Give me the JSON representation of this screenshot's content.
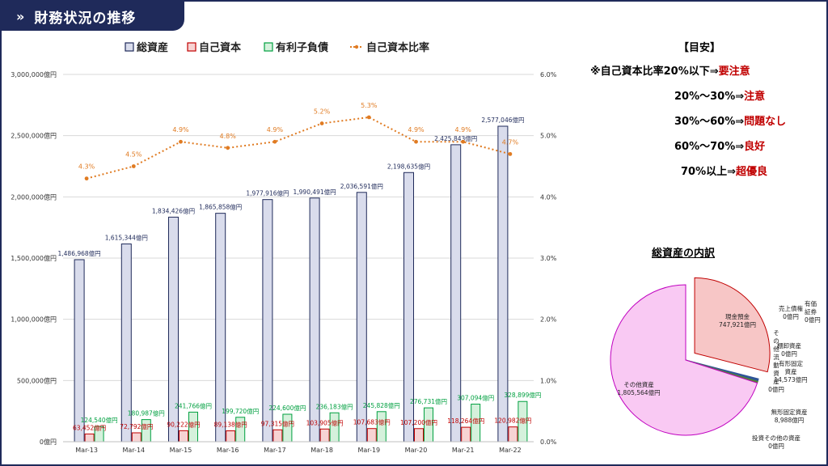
{
  "header": {
    "title": "財務状況の推移",
    "icon": "double-chevron-right-icon"
  },
  "chart_data": [
    {
      "type": "bar",
      "categories": [
        "Mar-13",
        "Mar-14",
        "Mar-15",
        "Mar-16",
        "Mar-17",
        "Mar-18",
        "Mar-19",
        "Mar-20",
        "Mar-21",
        "Mar-22"
      ],
      "series": [
        {
          "name": "総資産",
          "color": "#d9dcec",
          "values": [
            1486968,
            1615344,
            1834426,
            1865858,
            1977916,
            1990491,
            2036591,
            2198635,
            2425843,
            2577046
          ],
          "labels": [
            "1,486,968億円",
            "1,615,344億円",
            "1,834,426億円",
            "1,865,858億円",
            "1,977,916億円",
            "1,990,491億円",
            "2,036,591億円",
            "2,198,635億円",
            "2,425,843億円",
            "2,577,046億円"
          ]
        },
        {
          "name": "自己資本",
          "color": "#f7d3d3",
          "values": [
            63452,
            72792,
            90222,
            89138,
            97315,
            103905,
            107683,
            107200,
            118264,
            120982
          ],
          "labels": [
            "63,452億円",
            "72,792億円",
            "90,222億円",
            "89,138億円",
            "97,315億円",
            "103,905億円",
            "107,683億円",
            "107,200億円",
            "118,264億円",
            "120,982億円"
          ]
        },
        {
          "name": "有利子負債",
          "color": "#d5f1dc",
          "values": [
            124540,
            180987,
            241766,
            199720,
            224600,
            236183,
            245828,
            276731,
            307094,
            328899
          ],
          "labels": [
            "124,540億円",
            "180,987億円",
            "241,766億円",
            "199,720億円",
            "224,600億円",
            "236,183億円",
            "245,828億円",
            "276,731億円",
            "307,094億円",
            "328,899億円"
          ]
        },
        {
          "name": "自己資本比率",
          "type": "line",
          "axis": "right",
          "color": "#e07b22",
          "values": [
            4.3,
            4.5,
            4.9,
            4.8,
            4.9,
            5.2,
            5.3,
            4.9,
            4.9,
            4.7
          ],
          "labels": [
            "4.3%",
            "4.5%",
            "4.9%",
            "4.8%",
            "4.9%",
            "5.2%",
            "5.3%",
            "4.9%",
            "4.9%",
            "4.7%"
          ]
        }
      ],
      "ylim": [
        0,
        3000000
      ],
      "y_ticks": [
        "0億円",
        "500,000億円",
        "1,000,000億円",
        "1,500,000億円",
        "2,000,000億円",
        "2,500,000億円",
        "3,000,000億円"
      ],
      "y2lim": [
        0,
        6.0
      ],
      "y2_ticks": [
        "0.0%",
        "1.0%",
        "2.0%",
        "3.0%",
        "4.0%",
        "5.0%",
        "6.0%"
      ],
      "grid": true,
      "legend_position": "top"
    },
    {
      "type": "pie",
      "title": "総資産の内訳",
      "slices": [
        {
          "label": "現金預金",
          "value": 747921,
          "text": "747,921億円",
          "color": "#f7c6c6",
          "exploded": true
        },
        {
          "label": "売上債権",
          "value": 0,
          "text": "0億円",
          "color": "#4472c4"
        },
        {
          "label": "有価証券",
          "value": 0,
          "text": "0億円",
          "color": "#70ad47"
        },
        {
          "label": "棚卸資産",
          "value": 0,
          "text": "0億円",
          "color": "#ffc000"
        },
        {
          "label": "その他流動資産",
          "value": 0,
          "text": "0億円",
          "color": "#5b9bd5"
        },
        {
          "label": "有形固定資産",
          "value": 14573,
          "text": "14,573億円",
          "color": "#2f5597"
        },
        {
          "label": "無形固定資産",
          "value": 8988,
          "text": "8,988億円",
          "color": "#548235"
        },
        {
          "label": "投資その他の資産",
          "value": 0,
          "text": "0億円",
          "color": "#7f6000"
        },
        {
          "label": "その他資産",
          "value": 1805564,
          "text": "1,805,564億円",
          "color": "#f9c9f3"
        }
      ]
    }
  ],
  "guide": {
    "heading": "【目安】",
    "rows": [
      {
        "prefix": "※自己資本比率20%以下⇒",
        "verdict": "要注意"
      },
      {
        "prefix": "20%～30%⇒",
        "verdict": "注意"
      },
      {
        "prefix": "30%～60%⇒",
        "verdict": "問題なし"
      },
      {
        "prefix": "60%～70%⇒",
        "verdict": "良好"
      },
      {
        "prefix": "70%以上⇒",
        "verdict": "超優良"
      }
    ]
  }
}
